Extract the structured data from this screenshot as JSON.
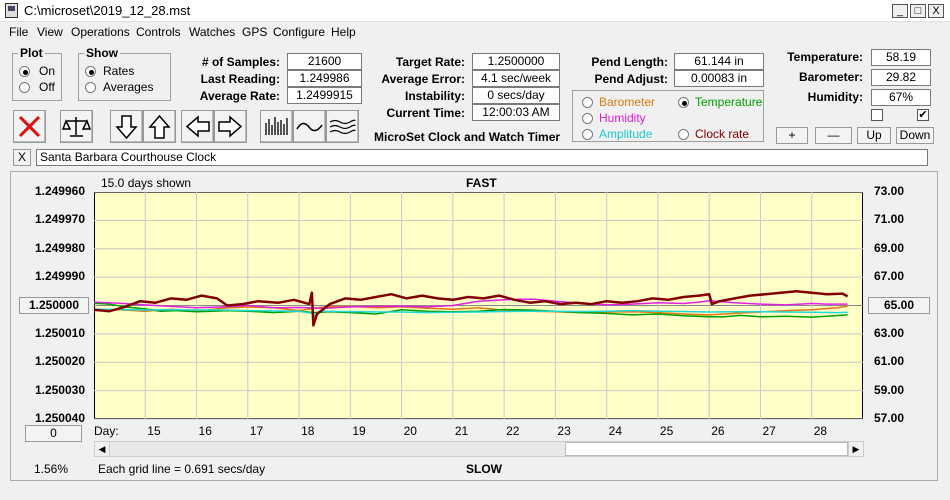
{
  "window": {
    "title": "C:\\microset\\2019_12_28.mst",
    "minimize": "_",
    "maximize": "□",
    "close": "X"
  },
  "menu": [
    "File",
    "View",
    "Operations",
    "Controls",
    "Watches",
    "GPS",
    "Configure",
    "Help"
  ],
  "plot_group": {
    "title": "Plot",
    "options": [
      {
        "label": "On",
        "selected": true
      },
      {
        "label": "Off",
        "selected": false
      }
    ]
  },
  "show_group": {
    "title": "Show",
    "options": [
      {
        "label": "Rates",
        "selected": true
      },
      {
        "label": "Averages",
        "selected": false
      }
    ]
  },
  "stats_left": [
    {
      "label": "# of Samples:",
      "value": "21600"
    },
    {
      "label": "Last Reading:",
      "value": "1.249986"
    },
    {
      "label": "Average Rate:",
      "value": "1.2499915"
    }
  ],
  "stats_mid": [
    {
      "label": "Target Rate:",
      "value": "1.2500000"
    },
    {
      "label": "Average Error:",
      "value": "4.1 sec/week"
    },
    {
      "label": "Instability:",
      "value": "0 secs/day"
    },
    {
      "label": "Current Time:",
      "value": "12:00:03 AM"
    }
  ],
  "stats_pend": [
    {
      "label": "Pend Length:",
      "value": "61.144 in"
    },
    {
      "label": "Pend Adjust:",
      "value": "0.00083 in"
    }
  ],
  "stats_env": [
    {
      "label": "Temperature:",
      "value": "58.19"
    },
    {
      "label": "Barometer:",
      "value": "29.82"
    },
    {
      "label": "Humidity:",
      "value": "67%"
    }
  ],
  "app_caption": "MicroSet Clock and Watch Timer",
  "overlay_group": {
    "options": [
      {
        "label": "Barometer",
        "color": "#e07a10",
        "selected": false
      },
      {
        "label": "Temperature",
        "color": "#00a000",
        "selected": true
      },
      {
        "label": "Humidity",
        "color": "#e020e0",
        "selected": false
      },
      {
        "label": "Amplitude",
        "color": "#20d8d8",
        "selected": false
      },
      {
        "label": "Clock rate",
        "color": "#800000",
        "selected": false
      }
    ]
  },
  "env_checkboxes": [
    {
      "checked": false
    },
    {
      "checked": true
    }
  ],
  "nav_buttons": [
    "+",
    "—",
    "Up",
    "Down"
  ],
  "toolbar_icons": [
    "clear-icon",
    "scale-balance-icon",
    "arrow-down-icon",
    "arrow-up-icon",
    "arrow-left-icon",
    "arrow-right-icon",
    "bars-icon",
    "wave-icon",
    "multi-wave-icon"
  ],
  "clock_name": {
    "close": "X",
    "value": "Santa Barbara Courthouse Clock"
  },
  "chart_labels": {
    "days_shown": "15.0 days shown",
    "top": "FAST",
    "bottom": "SLOW",
    "day_prefix": "Day:",
    "grid_note": "Each grid line = 0.691 secs/day",
    "percent": "1.56%",
    "left_button": "1.250000",
    "right_button": "65.00",
    "bottom_left_button": "0"
  },
  "chart_data": {
    "type": "line",
    "x_label": "Day:",
    "x_ticks": [
      15,
      16,
      17,
      18,
      19,
      20,
      21,
      22,
      23,
      24,
      25,
      26,
      27,
      28
    ],
    "xlim": [
      14.0,
      29.0
    ],
    "y_left_ticks": [
      "1.249960",
      "1.249970",
      "1.249980",
      "1.249990",
      "1.250000",
      "1.250010",
      "1.250020",
      "1.250030",
      "1.250040"
    ],
    "y_left_range": [
      1.24996,
      1.25004
    ],
    "y_right_ticks": [
      "73.00",
      "71.00",
      "69.00",
      "67.00",
      "65.00",
      "63.00",
      "61.00",
      "59.00",
      "57.00"
    ],
    "y_right_range": [
      57.0,
      73.0
    ],
    "series": [
      {
        "name": "Clock rate",
        "color": "#800000",
        "axis": "left",
        "width": 2.5,
        "x": [
          14.0,
          14.3,
          14.6,
          14.9,
          15.2,
          15.5,
          15.8,
          16.1,
          16.4,
          16.6,
          16.9,
          17.2,
          17.6,
          17.9,
          18.2,
          18.25,
          18.28,
          18.35,
          18.6,
          18.9,
          19.2,
          19.5,
          19.8,
          20.1,
          20.4,
          20.7,
          21.0,
          21.3,
          21.6,
          21.9,
          22.2,
          22.5,
          22.8,
          23.1,
          23.4,
          23.7,
          24.0,
          24.3,
          24.6,
          24.9,
          25.2,
          25.5,
          25.8,
          26.0,
          26.05,
          26.2,
          26.5,
          26.8,
          27.1,
          27.4,
          27.7,
          28.0,
          28.3,
          28.6,
          28.7
        ],
        "y": [
          1.2500015,
          1.250002,
          1.2500005,
          1.2499985,
          1.249999,
          1.2499975,
          1.249998,
          1.2499965,
          1.2499975,
          1.25,
          1.2499995,
          1.2499985,
          1.249999,
          1.249998,
          1.2499995,
          1.2499955,
          1.250007,
          1.250003,
          1.2499995,
          1.2499975,
          1.249998,
          1.249997,
          1.249996,
          1.2499975,
          1.2499965,
          1.2499975,
          1.249998,
          1.249997,
          1.2499975,
          1.2499965,
          1.249998,
          1.249999,
          1.2499985,
          1.2499995,
          1.249999,
          1.2499995,
          1.2499985,
          1.249999,
          1.2499985,
          1.2499975,
          1.249998,
          1.249997,
          1.2499965,
          1.249996,
          1.2499995,
          1.2499985,
          1.2499975,
          1.2499965,
          1.249996,
          1.2499955,
          1.249995,
          1.2499955,
          1.249996,
          1.2499958,
          1.2499968
        ]
      },
      {
        "name": "Barometer",
        "color": "#e07a10",
        "axis": "left",
        "width": 1.5,
        "x": [
          14.0,
          14.5,
          15.0,
          15.5,
          16.0,
          16.5,
          17.0,
          17.5,
          18.0,
          18.5,
          19.0,
          19.5,
          20.0,
          20.5,
          21.0,
          21.5,
          22.0,
          22.5,
          23.0,
          23.5,
          24.0,
          24.5,
          25.0,
          25.5,
          26.0,
          26.5,
          27.0,
          27.5,
          28.0,
          28.5,
          28.7
        ],
        "y": [
          1.2500018,
          1.2500015,
          1.250002,
          1.2500013,
          1.250002,
          1.250001,
          1.2500005,
          1.2500008,
          1.2500018,
          1.2500005,
          1.2500003,
          1.2500008,
          1.2500005,
          1.250001,
          1.2500013,
          1.2500008,
          1.2500017,
          1.250002,
          1.2500022,
          1.2500025,
          1.2500023,
          1.2500022,
          1.2500025,
          1.250003,
          1.2500033,
          1.2500028,
          1.2500023,
          1.2500018,
          1.2500015,
          1.2500008,
          1.2500002
        ]
      },
      {
        "name": "Temperature",
        "color": "#00a000",
        "axis": "left",
        "width": 1.5,
        "x": [
          14.0,
          14.3,
          14.6,
          15.0,
          15.3,
          15.6,
          16.0,
          16.3,
          16.6,
          17.0,
          17.5,
          18.0,
          18.3,
          18.6,
          19.0,
          19.5,
          20.0,
          20.5,
          21.0,
          21.5,
          22.0,
          22.5,
          23.0,
          23.5,
          24.0,
          24.5,
          25.0,
          25.5,
          26.0,
          26.3,
          26.6,
          27.0,
          27.5,
          28.0,
          28.3,
          28.7
        ],
        "y": [
          1.2499992,
          1.2499995,
          1.2500005,
          1.2500012,
          1.250002,
          1.2500018,
          1.2500022,
          1.250002,
          1.2500018,
          1.250002,
          1.2500025,
          1.250002,
          1.2500025,
          1.2500022,
          1.2500025,
          1.250003,
          1.2500015,
          1.250002,
          1.2500022,
          1.250002,
          1.2500014,
          1.2500016,
          1.250002,
          1.2500025,
          1.2500028,
          1.2500033,
          1.250003,
          1.2500036,
          1.250004,
          1.250004,
          1.2500035,
          1.250004,
          1.2500038,
          1.2500041,
          1.2500038,
          1.2500033
        ]
      },
      {
        "name": "Humidity",
        "color": "#e020e0",
        "axis": "left",
        "width": 1.5,
        "x": [
          14.0,
          14.5,
          15.0,
          15.5,
          16.0,
          16.5,
          17.0,
          17.5,
          18.0,
          18.5,
          19.0,
          19.5,
          20.0,
          20.5,
          21.0,
          21.5,
          22.0,
          22.3,
          22.6,
          23.0,
          23.5,
          24.0,
          24.5,
          25.0,
          25.5,
          25.8,
          26.0,
          26.5,
          27.0,
          27.5,
          28.0,
          28.3,
          28.7
        ],
        "y": [
          1.2499988,
          1.2499992,
          1.2499998,
          1.2500003,
          1.2500008,
          1.2500005,
          1.25,
          1.2500008,
          1.2500007,
          1.250001,
          1.2500005,
          1.2500003,
          1.2500002,
          1.2500005,
          1.25,
          1.2499985,
          1.249998,
          1.2499978,
          1.2499978,
          1.2499985,
          1.2499992,
          1.2499998,
          1.2499995,
          1.249999,
          1.2499993,
          1.2499988,
          1.2499983,
          1.249999,
          1.2499995,
          1.2499998,
          1.2499993,
          1.2499995,
          1.2499995
        ]
      },
      {
        "name": "Amplitude",
        "color": "#20d8d8",
        "axis": "left",
        "width": 1.5,
        "x": [
          14.0,
          14.5,
          15.0,
          15.5,
          16.0,
          16.5,
          17.0,
          17.5,
          18.0,
          18.25,
          18.28,
          18.4,
          18.8,
          19.2,
          19.6,
          20.0,
          20.5,
          21.0,
          21.5,
          22.0,
          22.5,
          23.0,
          23.5,
          24.0,
          24.5,
          25.0,
          25.5,
          26.0,
          26.5,
          27.0,
          27.5,
          28.0,
          28.5,
          28.7
        ],
        "y": [
          1.2500013,
          1.2500014,
          1.2500016,
          1.2500015,
          1.2500016,
          1.2500016,
          1.2500018,
          1.2500019,
          1.250002,
          1.2500028,
          1.250004,
          1.250002,
          1.2500021,
          1.2500022,
          1.2500023,
          1.2500023,
          1.2500025,
          1.2500024,
          1.2500023,
          1.2500021,
          1.250002,
          1.250002,
          1.2500021,
          1.250002,
          1.2500018,
          1.250002,
          1.2500021,
          1.2500023,
          1.2500022,
          1.2500022,
          1.2500023,
          1.2500024,
          1.2500025,
          1.2500024
        ]
      }
    ]
  }
}
